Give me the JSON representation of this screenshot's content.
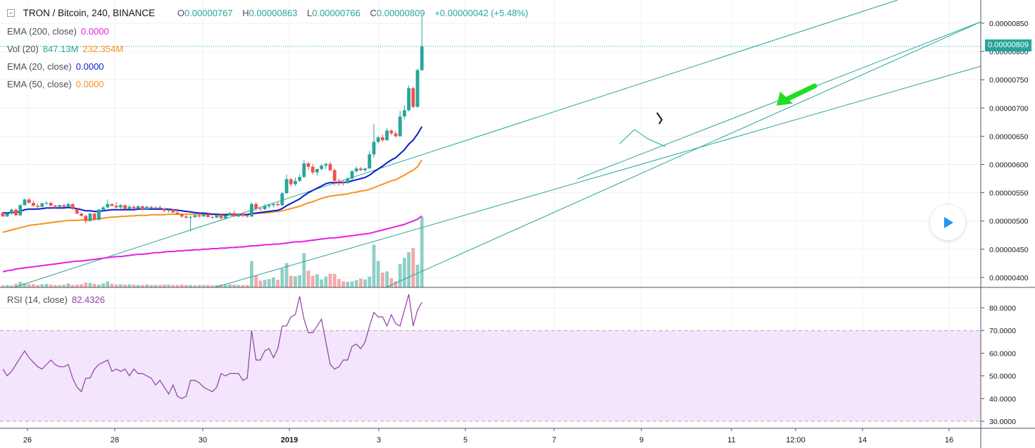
{
  "header": {
    "symbol": "TRON / Bitcoin, 240, BINANCE",
    "o_label": "O",
    "o_value": "0.00000767",
    "h_label": "H",
    "h_value": "0.00000863",
    "l_label": "L",
    "l_value": "0.00000766",
    "c_label": "C",
    "c_value": "0.00000809",
    "change": "+0.00000042 (+5.48%)"
  },
  "indicators": {
    "ema200": {
      "label": "EMA (200, close)",
      "value": "0.0000",
      "color": "#e91ee6"
    },
    "vol": {
      "label": "Vol (20)",
      "value1": "847.13M",
      "value2": "232.354M",
      "color1": "#26a69a",
      "color2": "#f7931e"
    },
    "ema20": {
      "label": "EMA (20, close)",
      "value": "0.0000",
      "color": "#0a1ccc"
    },
    "ema50": {
      "label": "EMA (50, close)",
      "value": "0.0000",
      "color": "#f7931e"
    },
    "rsi": {
      "label": "RSI (14, close)",
      "value": "82.4326",
      "color": "#8e3fa5"
    }
  },
  "price_axis": {
    "labels": [
      "0.00000850",
      "0.00000800",
      "0.00000750",
      "0.00000700",
      "0.00000650",
      "0.00000600",
      "0.00000550",
      "0.00000500",
      "0.00000450",
      "0.00000400"
    ],
    "current_price": "0.00000809"
  },
  "rsi_axis": {
    "labels": [
      "80.0000",
      "70.0000",
      "60.0000",
      "50.0000",
      "40.0000",
      "30.0000"
    ]
  },
  "time_axis": {
    "labels": [
      "26",
      "28",
      "30",
      "2019",
      "3",
      "5",
      "7",
      "9",
      "11",
      "12:00",
      "14",
      "16"
    ]
  },
  "colors": {
    "up": "#26a69a",
    "down": "#ef5350",
    "vol_up": "#8fcfc7",
    "vol_down": "#f4a9a8",
    "trendline": "#26a69a",
    "rsi_band": "#f3e5fb",
    "arrow": "#22dd22"
  },
  "chart_data": [
    {
      "type": "candlestick",
      "title": "TRON / Bitcoin, 240, BINANCE",
      "x_range": [
        "Dec 25",
        "Jan 16"
      ],
      "ylim": [
        3.875e-06,
        8.845e-06
      ],
      "note_last_candle": {
        "open": 7.67e-06,
        "high": 8.63e-06,
        "low": 7.66e-06,
        "close": 8.09e-06
      },
      "ohlc": [
        [
          5.15,
          5.15,
          5.08,
          5.08
        ],
        [
          5.08,
          5.14,
          5.07,
          5.13
        ],
        [
          5.13,
          5.22,
          5.11,
          5.2
        ],
        [
          5.2,
          5.22,
          5.09,
          5.1
        ],
        [
          5.1,
          5.3,
          5.09,
          5.28
        ],
        [
          5.28,
          5.4,
          5.27,
          5.38
        ],
        [
          5.38,
          5.41,
          5.31,
          5.32
        ],
        [
          5.32,
          5.36,
          5.26,
          5.27
        ],
        [
          5.27,
          5.31,
          5.22,
          5.25
        ],
        [
          5.25,
          5.33,
          5.24,
          5.31
        ],
        [
          5.31,
          5.35,
          5.28,
          5.32
        ],
        [
          5.32,
          5.34,
          5.26,
          5.27
        ],
        [
          5.27,
          5.29,
          5.22,
          5.25
        ],
        [
          5.25,
          5.29,
          5.24,
          5.28
        ],
        [
          5.28,
          5.3,
          5.24,
          5.25
        ],
        [
          5.25,
          5.32,
          5.24,
          5.3
        ],
        [
          5.3,
          5.31,
          5.2,
          5.21
        ],
        [
          5.21,
          5.23,
          5.12,
          5.13
        ],
        [
          5.13,
          5.15,
          5.08,
          5.09
        ],
        [
          5.09,
          5.11,
          4.96,
          5.0
        ],
        [
          5.0,
          5.15,
          4.99,
          5.13
        ],
        [
          5.13,
          5.15,
          5.01,
          5.02
        ],
        [
          5.02,
          5.22,
          5.01,
          5.2
        ],
        [
          5.2,
          5.26,
          5.18,
          5.24
        ],
        [
          5.24,
          5.38,
          5.23,
          5.3
        ],
        [
          5.3,
          5.31,
          5.25,
          5.27
        ],
        [
          5.27,
          5.33,
          5.22,
          5.24
        ],
        [
          5.24,
          5.3,
          5.21,
          5.28
        ],
        [
          5.28,
          5.29,
          5.2,
          5.21
        ],
        [
          5.21,
          5.28,
          5.2,
          5.25
        ],
        [
          5.25,
          5.28,
          5.2,
          5.22
        ],
        [
          5.22,
          5.28,
          5.21,
          5.26
        ],
        [
          5.26,
          5.27,
          5.18,
          5.2
        ],
        [
          5.2,
          5.27,
          5.19,
          5.25
        ],
        [
          5.25,
          5.27,
          5.22,
          5.23
        ],
        [
          5.23,
          5.26,
          5.2,
          5.24
        ],
        [
          5.24,
          5.28,
          5.2,
          5.22
        ],
        [
          5.22,
          5.24,
          5.16,
          5.18
        ],
        [
          5.18,
          5.22,
          5.15,
          5.2
        ],
        [
          5.2,
          5.21,
          5.14,
          5.15
        ],
        [
          5.15,
          5.22,
          5.12,
          5.12
        ],
        [
          5.12,
          5.14,
          5.06,
          5.08
        ],
        [
          5.08,
          5.1,
          5.04,
          5.06
        ],
        [
          5.06,
          5.1,
          4.82,
          5.07
        ],
        [
          5.07,
          5.12,
          5.05,
          5.1
        ],
        [
          5.1,
          5.11,
          5.06,
          5.08
        ],
        [
          5.08,
          5.13,
          5.07,
          5.12
        ],
        [
          5.12,
          5.13,
          5.06,
          5.07
        ],
        [
          5.07,
          5.1,
          5.04,
          5.06
        ],
        [
          5.06,
          5.12,
          5.05,
          5.11
        ],
        [
          5.11,
          5.12,
          5.03,
          5.05
        ],
        [
          5.05,
          5.11,
          5.02,
          5.1
        ],
        [
          5.1,
          5.16,
          5.09,
          5.14
        ],
        [
          5.14,
          5.18,
          5.07,
          5.08
        ],
        [
          5.08,
          5.14,
          5.07,
          5.12
        ],
        [
          5.12,
          5.15,
          5.07,
          5.09
        ],
        [
          5.09,
          5.11,
          5.06,
          5.08
        ],
        [
          5.08,
          5.33,
          5.07,
          5.3
        ],
        [
          5.3,
          5.33,
          5.18,
          5.22
        ],
        [
          5.22,
          5.25,
          5.18,
          5.21
        ],
        [
          5.21,
          5.3,
          5.19,
          5.26
        ],
        [
          5.26,
          5.31,
          5.22,
          5.28
        ],
        [
          5.28,
          5.32,
          5.24,
          5.3
        ],
        [
          5.3,
          5.33,
          5.26,
          5.28
        ],
        [
          5.28,
          5.52,
          5.27,
          5.49
        ],
        [
          5.49,
          5.82,
          5.48,
          5.74
        ],
        [
          5.74,
          5.76,
          5.61,
          5.65
        ],
        [
          5.65,
          5.77,
          5.62,
          5.71
        ],
        [
          5.71,
          5.83,
          5.69,
          5.78
        ],
        [
          5.78,
          6.08,
          5.76,
          6.02
        ],
        [
          6.02,
          6.05,
          5.9,
          5.96
        ],
        [
          5.96,
          6.01,
          5.82,
          5.86
        ],
        [
          5.86,
          5.93,
          5.8,
          5.92
        ],
        [
          5.92,
          6.01,
          5.89,
          5.98
        ],
        [
          5.98,
          6.03,
          5.92,
          6.01
        ],
        [
          6.01,
          6.05,
          5.88,
          5.9
        ],
        [
          5.9,
          5.93,
          5.62,
          5.71
        ],
        [
          5.71,
          5.75,
          5.62,
          5.68
        ],
        [
          5.68,
          5.72,
          5.63,
          5.67
        ],
        [
          5.67,
          5.78,
          5.66,
          5.75
        ],
        [
          5.75,
          5.9,
          5.72,
          5.88
        ],
        [
          5.88,
          5.97,
          5.85,
          5.93
        ],
        [
          5.93,
          5.96,
          5.88,
          5.9
        ],
        [
          5.9,
          5.94,
          5.87,
          5.93
        ],
        [
          5.93,
          6.24,
          5.92,
          6.18
        ],
        [
          6.18,
          6.72,
          6.12,
          6.4
        ],
        [
          6.4,
          6.51,
          6.37,
          6.48
        ],
        [
          6.48,
          6.53,
          6.4,
          6.43
        ],
        [
          6.43,
          6.64,
          6.42,
          6.6
        ],
        [
          6.6,
          6.62,
          6.52,
          6.55
        ],
        [
          6.55,
          6.6,
          6.47,
          6.5
        ],
        [
          6.5,
          6.95,
          6.49,
          6.85
        ],
        [
          6.85,
          7.05,
          6.8,
          6.96
        ],
        [
          6.96,
          7.4,
          6.94,
          7.35
        ],
        [
          7.35,
          7.38,
          7.0,
          7.02
        ],
        [
          7.02,
          7.7,
          7.01,
          7.67
        ],
        [
          7.67,
          8.63,
          7.66,
          8.09
        ]
      ],
      "ema20": [
        5.15,
        5.14,
        5.15,
        5.15,
        5.17,
        5.2,
        5.21,
        5.21,
        5.21,
        5.22,
        5.23,
        5.23,
        5.23,
        5.23,
        5.23,
        5.24,
        5.23,
        5.22,
        5.2,
        5.18,
        5.18,
        5.17,
        5.17,
        5.18,
        5.19,
        5.2,
        5.2,
        5.2,
        5.2,
        5.2,
        5.2,
        5.21,
        5.21,
        5.21,
        5.21,
        5.21,
        5.21,
        5.21,
        5.21,
        5.2,
        5.19,
        5.18,
        5.17,
        5.16,
        5.15,
        5.14,
        5.14,
        5.13,
        5.12,
        5.12,
        5.11,
        5.11,
        5.11,
        5.11,
        5.11,
        5.11,
        5.11,
        5.13,
        5.14,
        5.15,
        5.16,
        5.17,
        5.18,
        5.19,
        5.22,
        5.27,
        5.31,
        5.35,
        5.39,
        5.45,
        5.5,
        5.54,
        5.58,
        5.62,
        5.66,
        5.68,
        5.68,
        5.68,
        5.68,
        5.69,
        5.71,
        5.73,
        5.75,
        5.77,
        5.81,
        5.87,
        5.92,
        5.97,
        6.03,
        6.08,
        6.12,
        6.19,
        6.26,
        6.36,
        6.43,
        6.54,
        6.67
      ],
      "ema50": [
        4.8,
        4.82,
        4.84,
        4.86,
        4.88,
        4.9,
        4.92,
        4.93,
        4.94,
        4.95,
        4.96,
        4.97,
        4.98,
        4.99,
        5.0,
        5.01,
        5.01,
        5.01,
        5.02,
        5.02,
        5.02,
        5.03,
        5.04,
        5.05,
        5.06,
        5.07,
        5.07,
        5.08,
        5.08,
        5.09,
        5.09,
        5.1,
        5.1,
        5.1,
        5.11,
        5.11,
        5.11,
        5.11,
        5.12,
        5.12,
        5.12,
        5.12,
        5.12,
        5.12,
        5.12,
        5.12,
        5.12,
        5.12,
        5.12,
        5.12,
        5.12,
        5.12,
        5.12,
        5.12,
        5.12,
        5.12,
        5.12,
        5.13,
        5.13,
        5.14,
        5.14,
        5.15,
        5.16,
        5.17,
        5.18,
        5.2,
        5.22,
        5.24,
        5.26,
        5.29,
        5.32,
        5.34,
        5.37,
        5.4,
        5.42,
        5.44,
        5.45,
        5.46,
        5.47,
        5.48,
        5.5,
        5.51,
        5.53,
        5.54,
        5.56,
        5.59,
        5.62,
        5.65,
        5.68,
        5.71,
        5.73,
        5.77,
        5.81,
        5.86,
        5.9,
        5.96,
        6.08
      ],
      "ema200": [
        4.1,
        4.12,
        4.13,
        4.15,
        4.16,
        4.17,
        4.18,
        4.19,
        4.2,
        4.21,
        4.22,
        4.23,
        4.24,
        4.25,
        4.26,
        4.27,
        4.28,
        4.29,
        4.29,
        4.3,
        4.31,
        4.32,
        4.33,
        4.34,
        4.35,
        4.36,
        4.37,
        4.37,
        4.38,
        4.39,
        4.4,
        4.41,
        4.41,
        4.42,
        4.43,
        4.44,
        4.44,
        4.45,
        4.46,
        4.46,
        4.47,
        4.47,
        4.48,
        4.48,
        4.49,
        4.49,
        4.5,
        4.5,
        4.51,
        4.51,
        4.52,
        4.52,
        4.53,
        4.53,
        4.54,
        4.54,
        4.55,
        4.56,
        4.56,
        4.57,
        4.58,
        4.58,
        4.59,
        4.59,
        4.6,
        4.61,
        4.62,
        4.63,
        4.63,
        4.64,
        4.65,
        4.66,
        4.67,
        4.68,
        4.69,
        4.7,
        4.7,
        4.71,
        4.72,
        4.73,
        4.74,
        4.75,
        4.76,
        4.77,
        4.78,
        4.8,
        4.82,
        4.84,
        4.86,
        4.88,
        4.9,
        4.92,
        4.94,
        4.97,
        5.0,
        5.03,
        5.09
      ],
      "volume": [
        5,
        6,
        5,
        9,
        14,
        10,
        8,
        8,
        6,
        8,
        9,
        7,
        6,
        6,
        7,
        10,
        6,
        7,
        8,
        12,
        11,
        9,
        7,
        10,
        15,
        9,
        7,
        8,
        7,
        8,
        7,
        6,
        6,
        7,
        6,
        6,
        6,
        7,
        7,
        6,
        6,
        7,
        6,
        6,
        5,
        6,
        6,
        6,
        5,
        6,
        7,
        7,
        8,
        7,
        6,
        6,
        6,
        66,
        30,
        17,
        19,
        21,
        25,
        19,
        47,
        61,
        29,
        28,
        30,
        86,
        42,
        29,
        33,
        20,
        27,
        34,
        34,
        21,
        15,
        14,
        15,
        18,
        22,
        20,
        27,
        107,
        66,
        37,
        40,
        23,
        15,
        58,
        74,
        88,
        99,
        57,
        177
      ],
      "volume_ylim": [
        0,
        180
      ]
    },
    {
      "type": "line",
      "title": "RSI (14, close)",
      "ylim": [
        27.5,
        87.5
      ],
      "bands": [
        30,
        70
      ],
      "values": [
        53,
        50,
        52,
        55,
        58,
        61,
        58,
        56,
        54,
        53,
        55,
        57,
        55,
        54,
        54,
        55,
        49,
        45,
        43,
        49,
        49,
        53,
        55,
        56,
        57,
        52,
        53,
        52,
        53,
        50,
        53,
        51,
        51,
        50,
        49,
        46,
        48,
        45,
        42,
        46,
        41,
        40,
        41,
        48,
        48,
        47,
        45,
        44,
        43,
        45,
        51,
        50,
        51,
        51,
        51,
        48,
        49,
        70,
        57,
        57,
        61,
        62,
        58,
        62,
        72,
        72,
        76,
        77,
        85,
        75,
        69,
        69,
        72,
        75,
        65,
        55,
        53,
        54,
        57,
        57,
        63,
        64,
        62,
        65,
        72,
        78,
        76,
        76,
        72,
        77,
        73,
        72,
        79,
        86,
        72,
        79,
        82.43
      ]
    }
  ]
}
